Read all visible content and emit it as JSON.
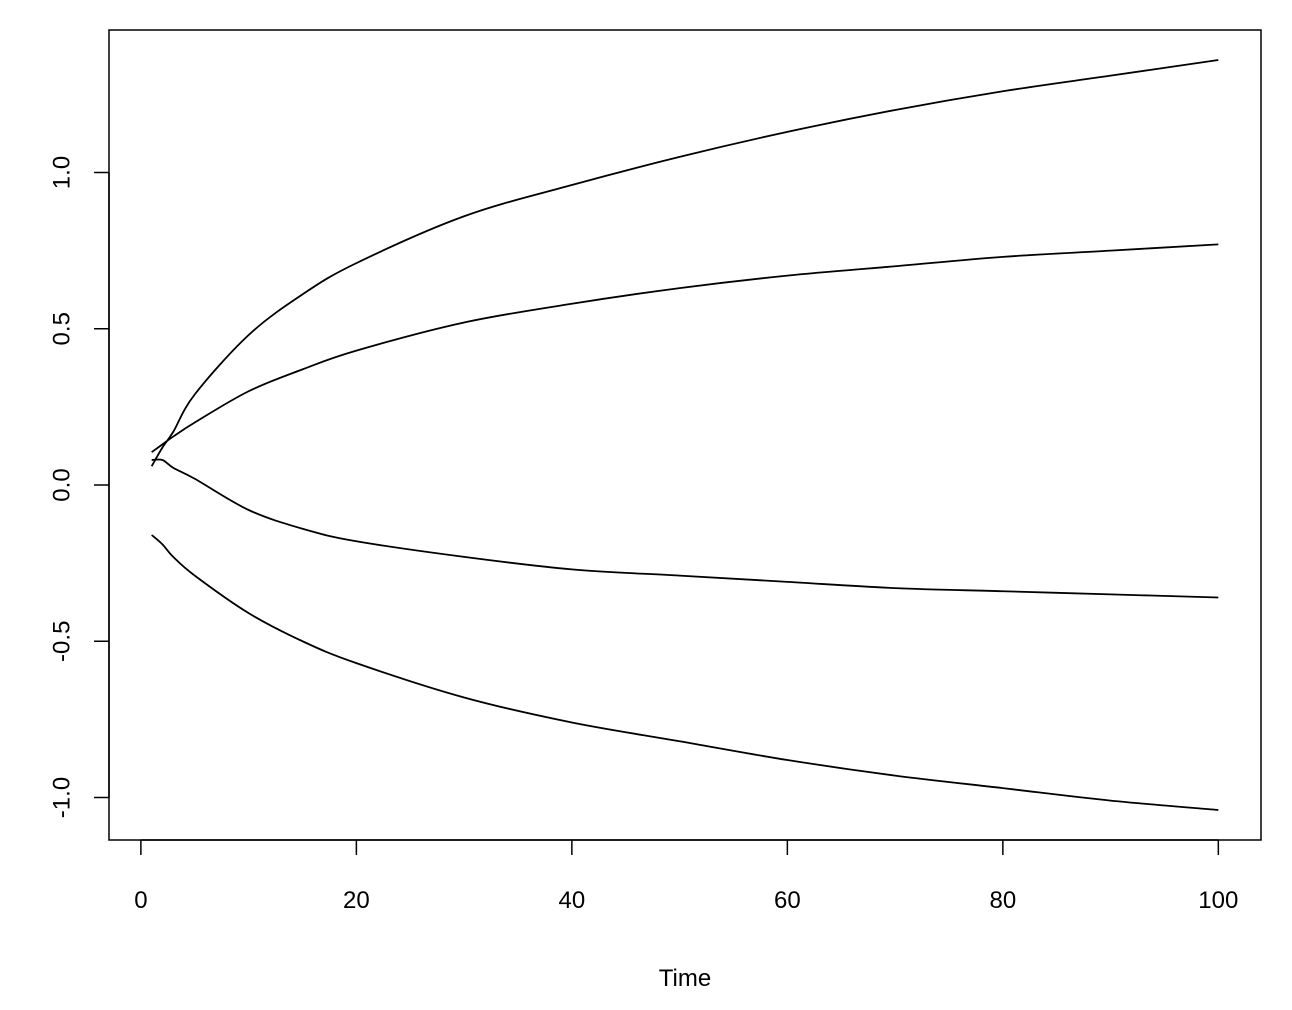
{
  "chart_data": {
    "type": "line",
    "title": "",
    "xlabel": "Time",
    "ylabel": "",
    "xlim": [
      -2.96,
      103.96
    ],
    "ylim": [
      -1.136,
      1.456
    ],
    "x_ticks": [
      0,
      20,
      40,
      60,
      80,
      100
    ],
    "x_tick_labels": [
      "0",
      "20",
      "40",
      "60",
      "80",
      "100"
    ],
    "y_ticks": [
      -1.0,
      -0.5,
      0.0,
      0.5,
      1.0
    ],
    "y_tick_labels": [
      "-1.0",
      "-0.5",
      "0.0",
      "0.5",
      "1.0"
    ],
    "grid": false,
    "line_color": "#000000",
    "x": [
      1,
      2,
      3,
      5,
      10,
      15,
      20,
      30,
      40,
      50,
      60,
      70,
      80,
      90,
      100
    ],
    "series": [
      {
        "values": [
          0.06,
          0.12,
          0.17,
          0.29,
          0.48,
          0.61,
          0.71,
          0.86,
          0.96,
          1.05,
          1.13,
          1.2,
          1.26,
          1.31,
          1.36
        ]
      },
      {
        "values": [
          0.105,
          0.13,
          0.155,
          0.2,
          0.3,
          0.37,
          0.43,
          0.52,
          0.58,
          0.63,
          0.67,
          0.7,
          0.73,
          0.75,
          0.77
        ]
      },
      {
        "values": [
          0.08,
          0.08,
          0.055,
          0.02,
          -0.08,
          -0.14,
          -0.18,
          -0.23,
          -0.27,
          -0.29,
          -0.31,
          -0.33,
          -0.34,
          -0.35,
          -0.36
        ]
      },
      {
        "values": [
          -0.16,
          -0.19,
          -0.23,
          -0.29,
          -0.41,
          -0.5,
          -0.57,
          -0.68,
          -0.76,
          -0.82,
          -0.88,
          -0.93,
          -0.97,
          -1.01,
          -1.04
        ]
      }
    ]
  }
}
